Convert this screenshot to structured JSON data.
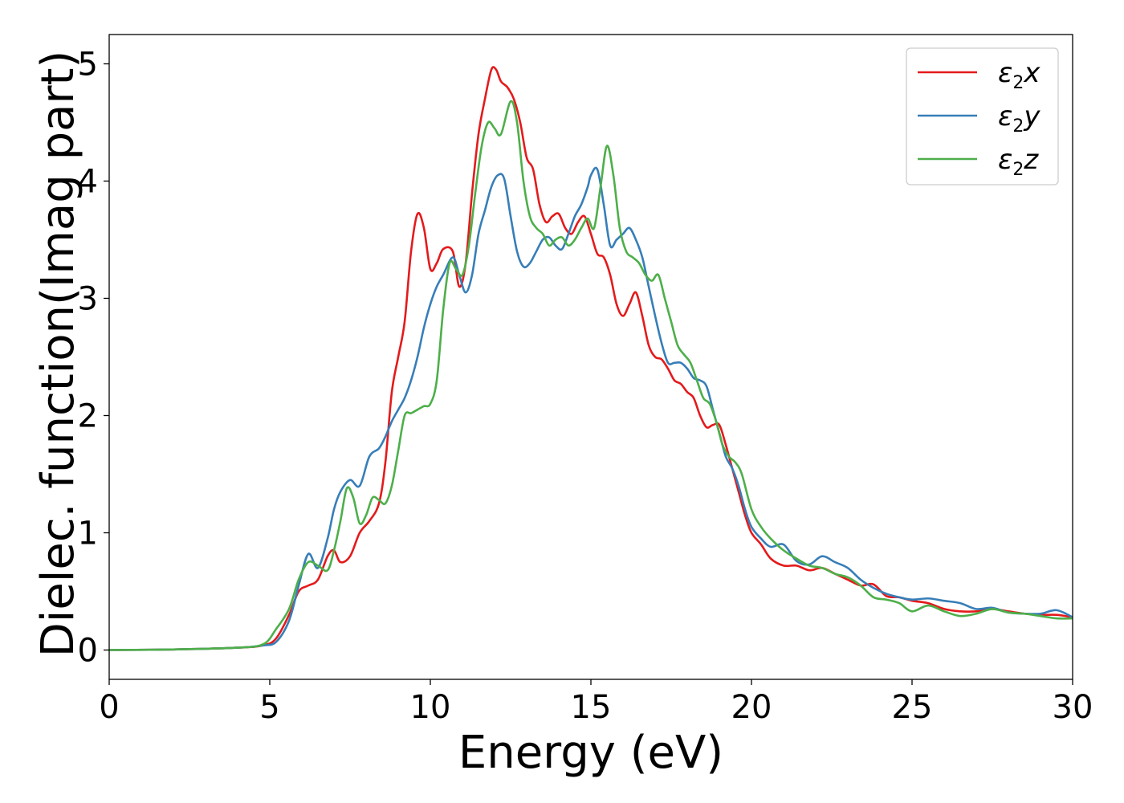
{
  "chart_data": {
    "type": "line",
    "title": "",
    "xlabel": "Energy (eV)",
    "ylabel": "Dielec. function(Imag part)",
    "xlim": [
      0,
      30
    ],
    "ylim": [
      -0.25,
      5.25
    ],
    "xticks": [
      0,
      5,
      10,
      15,
      20,
      25,
      30
    ],
    "yticks": [
      0,
      1,
      2,
      3,
      4,
      5
    ],
    "grid": false,
    "legend_position": "top-right",
    "series": [
      {
        "name": "ε₂x",
        "legend_base": "ε",
        "legend_sub": "2",
        "legend_var": "x",
        "color": "#e41a1c",
        "x": [
          0,
          2,
          4,
          4.8,
          5.2,
          5.6,
          5.9,
          6.2,
          6.5,
          6.8,
          7.0,
          7.2,
          7.5,
          7.8,
          8.1,
          8.4,
          8.6,
          8.8,
          9.0,
          9.2,
          9.4,
          9.6,
          9.8,
          10.0,
          10.2,
          10.4,
          10.7,
          10.9,
          11.1,
          11.3,
          11.5,
          11.7,
          11.9,
          12.05,
          12.2,
          12.4,
          12.6,
          12.8,
          13.0,
          13.2,
          13.4,
          13.6,
          13.8,
          14.0,
          14.2,
          14.4,
          14.6,
          14.8,
          15.0,
          15.2,
          15.4,
          15.6,
          15.8,
          16.0,
          16.2,
          16.4,
          16.6,
          16.8,
          17.0,
          17.2,
          17.4,
          17.6,
          17.8,
          18.0,
          18.2,
          18.4,
          18.6,
          18.8,
          19.0,
          19.2,
          19.4,
          19.6,
          19.8,
          20.0,
          20.3,
          20.6,
          21.0,
          21.4,
          21.8,
          22.2,
          22.6,
          23.0,
          23.4,
          23.8,
          24.2,
          24.6,
          25.0,
          25.5,
          26.0,
          26.5,
          27.0,
          27.5,
          28.0,
          28.5,
          29.0,
          29.5,
          30.0
        ],
        "y": [
          0,
          0.005,
          0.02,
          0.04,
          0.1,
          0.3,
          0.5,
          0.55,
          0.6,
          0.8,
          0.85,
          0.75,
          0.8,
          1.0,
          1.1,
          1.25,
          1.6,
          2.2,
          2.5,
          2.8,
          3.4,
          3.72,
          3.6,
          3.25,
          3.3,
          3.42,
          3.4,
          3.1,
          3.3,
          3.9,
          4.4,
          4.7,
          4.95,
          4.95,
          4.85,
          4.8,
          4.7,
          4.5,
          4.2,
          4.1,
          3.8,
          3.65,
          3.7,
          3.72,
          3.6,
          3.55,
          3.65,
          3.7,
          3.55,
          3.38,
          3.35,
          3.2,
          2.95,
          2.85,
          2.95,
          3.05,
          2.85,
          2.6,
          2.5,
          2.48,
          2.4,
          2.3,
          2.27,
          2.2,
          2.15,
          2.0,
          1.9,
          1.92,
          1.92,
          1.75,
          1.55,
          1.35,
          1.15,
          1.0,
          0.9,
          0.78,
          0.72,
          0.72,
          0.68,
          0.7,
          0.65,
          0.6,
          0.55,
          0.56,
          0.46,
          0.45,
          0.42,
          0.4,
          0.35,
          0.33,
          0.33,
          0.35,
          0.33,
          0.31,
          0.3,
          0.3,
          0.28
        ]
      },
      {
        "name": "ε₂y",
        "legend_base": "ε",
        "legend_sub": "2",
        "legend_var": "y",
        "color": "#377eb8",
        "x": [
          0,
          2,
          4,
          4.8,
          5.2,
          5.6,
          5.9,
          6.2,
          6.5,
          6.8,
          7.0,
          7.2,
          7.5,
          7.8,
          8.1,
          8.4,
          8.6,
          8.8,
          9.0,
          9.2,
          9.4,
          9.6,
          9.8,
          10.0,
          10.2,
          10.4,
          10.7,
          10.9,
          11.1,
          11.3,
          11.5,
          11.7,
          11.9,
          12.1,
          12.3,
          12.5,
          12.7,
          12.9,
          13.1,
          13.3,
          13.5,
          13.7,
          13.9,
          14.1,
          14.3,
          14.5,
          14.7,
          14.9,
          15.0,
          15.2,
          15.4,
          15.6,
          15.8,
          16.0,
          16.2,
          16.4,
          16.6,
          16.8,
          17.0,
          17.2,
          17.4,
          17.6,
          17.8,
          18.0,
          18.2,
          18.4,
          18.6,
          18.8,
          19.0,
          19.2,
          19.4,
          19.6,
          19.8,
          20.0,
          20.3,
          20.6,
          21.0,
          21.4,
          21.8,
          22.2,
          22.6,
          23.0,
          23.4,
          23.8,
          24.2,
          24.6,
          25.0,
          25.5,
          26.0,
          26.5,
          27.0,
          27.5,
          28.0,
          28.5,
          29.0,
          29.5,
          30.0
        ],
        "y": [
          0,
          0.005,
          0.02,
          0.04,
          0.07,
          0.25,
          0.55,
          0.82,
          0.7,
          0.95,
          1.2,
          1.35,
          1.45,
          1.4,
          1.65,
          1.72,
          1.82,
          1.95,
          2.05,
          2.15,
          2.3,
          2.5,
          2.75,
          2.95,
          3.1,
          3.2,
          3.35,
          3.2,
          3.05,
          3.2,
          3.55,
          3.75,
          3.95,
          4.05,
          4.02,
          3.7,
          3.4,
          3.27,
          3.3,
          3.4,
          3.5,
          3.52,
          3.45,
          3.42,
          3.55,
          3.7,
          3.8,
          3.95,
          4.05,
          4.1,
          3.8,
          3.45,
          3.5,
          3.55,
          3.6,
          3.5,
          3.35,
          3.1,
          2.85,
          2.62,
          2.45,
          2.45,
          2.45,
          2.4,
          2.32,
          2.3,
          2.25,
          2.05,
          1.85,
          1.65,
          1.55,
          1.4,
          1.2,
          1.05,
          0.95,
          0.88,
          0.9,
          0.76,
          0.73,
          0.8,
          0.75,
          0.7,
          0.6,
          0.53,
          0.48,
          0.45,
          0.43,
          0.44,
          0.42,
          0.4,
          0.35,
          0.36,
          0.32,
          0.31,
          0.31,
          0.34,
          0.28
        ]
      },
      {
        "name": "ε₂z",
        "legend_base": "ε",
        "legend_sub": "2",
        "legend_var": "z",
        "color": "#4daf4a",
        "x": [
          0,
          2,
          4,
          4.8,
          5.2,
          5.6,
          5.9,
          6.2,
          6.5,
          6.8,
          7.0,
          7.2,
          7.4,
          7.6,
          7.8,
          8.0,
          8.2,
          8.4,
          8.6,
          8.8,
          9.0,
          9.2,
          9.4,
          9.6,
          9.8,
          10.0,
          10.2,
          10.4,
          10.6,
          10.8,
          11.0,
          11.2,
          11.4,
          11.6,
          11.8,
          12.0,
          12.2,
          12.5,
          12.7,
          12.9,
          13.1,
          13.3,
          13.5,
          13.7,
          13.9,
          14.1,
          14.3,
          14.5,
          14.7,
          14.9,
          15.1,
          15.3,
          15.5,
          15.7,
          15.9,
          16.1,
          16.3,
          16.5,
          16.7,
          16.9,
          17.1,
          17.3,
          17.5,
          17.7,
          17.9,
          18.1,
          18.3,
          18.5,
          18.7,
          18.9,
          19.1,
          19.3,
          19.5,
          19.7,
          20.0,
          20.3,
          20.6,
          21.0,
          21.4,
          21.8,
          22.2,
          22.6,
          23.0,
          23.4,
          23.8,
          24.2,
          24.6,
          25.0,
          25.5,
          26.0,
          26.5,
          27.0,
          27.5,
          28.0,
          28.5,
          29.0,
          29.5,
          30.0
        ],
        "y": [
          0,
          0.005,
          0.02,
          0.05,
          0.18,
          0.35,
          0.6,
          0.75,
          0.72,
          0.68,
          0.85,
          1.1,
          1.38,
          1.3,
          1.08,
          1.15,
          1.3,
          1.28,
          1.25,
          1.4,
          1.7,
          2.0,
          2.02,
          2.05,
          2.08,
          2.1,
          2.3,
          2.9,
          3.3,
          3.25,
          3.2,
          3.45,
          3.9,
          4.3,
          4.5,
          4.45,
          4.4,
          4.68,
          4.5,
          4.0,
          3.7,
          3.6,
          3.55,
          3.45,
          3.5,
          3.52,
          3.45,
          3.5,
          3.6,
          3.68,
          3.6,
          3.95,
          4.3,
          4.05,
          3.6,
          3.4,
          3.35,
          3.3,
          3.2,
          3.15,
          3.2,
          3.0,
          2.8,
          2.6,
          2.52,
          2.45,
          2.3,
          2.15,
          2.1,
          1.95,
          1.75,
          1.65,
          1.6,
          1.5,
          1.2,
          1.05,
          0.95,
          0.85,
          0.78,
          0.72,
          0.7,
          0.65,
          0.62,
          0.55,
          0.45,
          0.43,
          0.4,
          0.33,
          0.38,
          0.33,
          0.29,
          0.31,
          0.35,
          0.32,
          0.31,
          0.29,
          0.27,
          0.27
        ]
      }
    ]
  }
}
